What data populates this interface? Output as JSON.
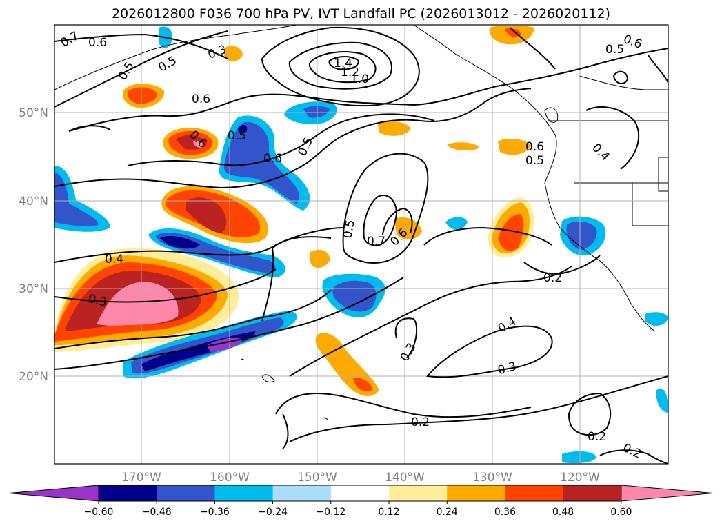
{
  "title": "2026012800 F036 700 hPa PV, IVT Landfall PC (2026013012 - 2026020112)",
  "lat_labels": [
    "50°N",
    "40°N",
    "30°N",
    "20°N"
  ],
  "lon_labels": [
    "170°W",
    "160°W",
    "150°W",
    "140°W",
    "130°W",
    "120°W"
  ],
  "contour_labels": [
    "0.7",
    "0.6",
    "0.5",
    "0.5",
    "0.6",
    "0.6",
    "0.5",
    "0.6",
    "0.5",
    "1.4",
    "1.2",
    "1.0",
    "0.3",
    "0.5",
    "0.6",
    "0.6",
    "0.5",
    "0.4",
    "0.5",
    "0.7",
    "0.6",
    "0.4",
    "0.3",
    "0.2",
    "0.4",
    "0.3",
    "0.3",
    "0.2",
    "0.2",
    "0.2"
  ],
  "colorbar": {
    "ticks": [
      "−0.60",
      "−0.48",
      "−0.36",
      "−0.24",
      "−0.12",
      "0.12",
      "0.24",
      "0.36",
      "0.48",
      "0.60"
    ],
    "colors": [
      "#9933cc",
      "#000088",
      "#3355cc",
      "#00bbee",
      "#aaddf7",
      "#ffffff",
      "#ffee99",
      "#ffaa00",
      "#ff4400",
      "#bb2222",
      "#ff88aa"
    ]
  }
}
